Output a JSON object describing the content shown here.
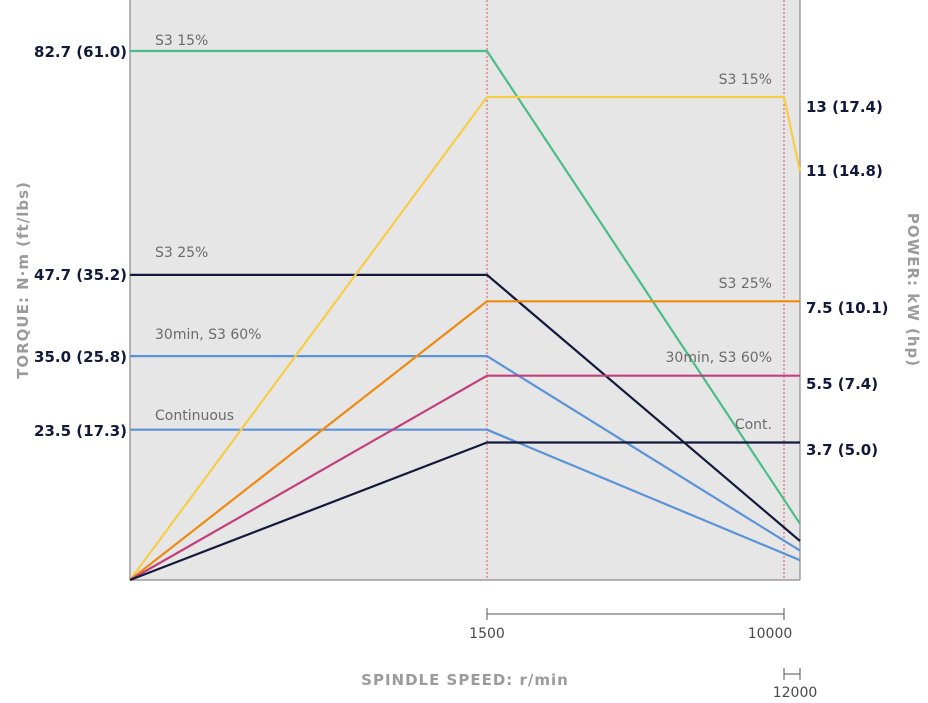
{
  "chart_data": {
    "type": "line",
    "x_label": "SPINDLE SPEED: r/min",
    "y_left_label": "TORQUE: N·m (ft/lbs)",
    "y_right_label": "POWER: kW (hp)",
    "x_ticks": [
      "1500",
      "10000",
      "12000"
    ],
    "x_range": [
      0,
      12000
    ],
    "torque_ticks": [
      "82.7 (61.0)",
      "47.7 (35.2)",
      "35.0 (25.8)",
      "23.5 (17.3)"
    ],
    "power_ticks": [
      "13 (17.4)",
      "11 (14.8)",
      "7.5 (10.1)",
      "5.5 (7.4)",
      "3.7 (5.0)"
    ],
    "torque_series": [
      {
        "name": "S3 15%",
        "color": "#4bbd8b",
        "points": [
          [
            0,
            82.7
          ],
          [
            1500,
            82.7
          ],
          [
            12000,
            8.8
          ]
        ]
      },
      {
        "name": "S3 25%",
        "color": "#141a3c",
        "points": [
          [
            0,
            47.7
          ],
          [
            1500,
            47.7
          ],
          [
            12000,
            6.1
          ]
        ]
      },
      {
        "name": "30min, S3 60%",
        "color": "#5b93d8",
        "points": [
          [
            0,
            35.0
          ],
          [
            1500,
            35.0
          ],
          [
            12000,
            4.6
          ]
        ]
      },
      {
        "name": "Continuous",
        "color": "#5b93d8",
        "points": [
          [
            0,
            23.5
          ],
          [
            1500,
            23.5
          ],
          [
            12000,
            3.1
          ]
        ]
      }
    ],
    "power_series": [
      {
        "name": "S3 15%",
        "color": "#f7cd47",
        "points": [
          [
            0,
            0
          ],
          [
            1500,
            13
          ],
          [
            10000,
            13
          ],
          [
            12000,
            11
          ]
        ]
      },
      {
        "name": "S3 25%",
        "color": "#ef8a10",
        "points": [
          [
            0,
            0
          ],
          [
            1500,
            7.5
          ],
          [
            12000,
            7.5
          ]
        ]
      },
      {
        "name": "30min, S3 60%",
        "color": "#c23f7c",
        "points": [
          [
            0,
            0
          ],
          [
            1500,
            5.5
          ],
          [
            12000,
            5.5
          ]
        ]
      },
      {
        "name": "Cont.",
        "color": "#141a3c",
        "points": [
          [
            0,
            0
          ],
          [
            1500,
            3.7
          ],
          [
            12000,
            3.7
          ]
        ]
      }
    ]
  }
}
